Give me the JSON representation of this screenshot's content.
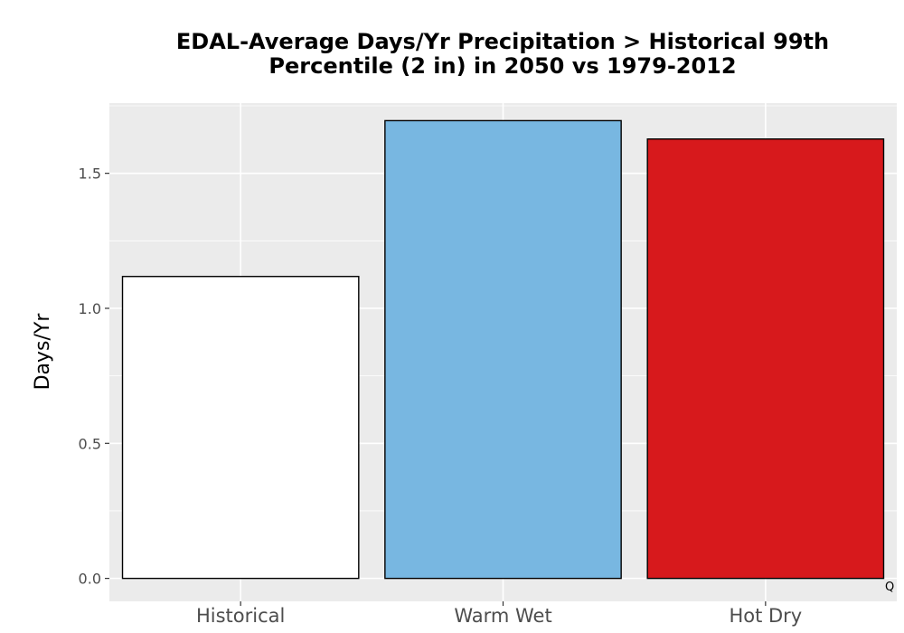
{
  "chart_data": {
    "type": "bar",
    "title": "EDAL-Average Days/Yr Precipitation > Historical 99th Percentile (2 in) in 2050 vs 1979-2012",
    "title_lines": [
      "EDAL-Average Days/Yr Precipitation > Historical 99th",
      "Percentile (2 in) in 2050 vs 1979-2012"
    ],
    "xlabel": "",
    "ylabel": "Days/Yr",
    "categories": [
      "Historical",
      "Warm Wet",
      "Hot Dry"
    ],
    "values": [
      1.118,
      1.695,
      1.627
    ],
    "colors": [
      "#ffffff",
      "#78b7e1",
      "#d7191c"
    ],
    "ylim": [
      -0.085,
      1.76
    ],
    "yticks": [
      0.0,
      0.5,
      1.0,
      1.5
    ],
    "ytick_labels": [
      "0.0",
      "0.5",
      "1.0",
      "1.5"
    ],
    "grid": true,
    "panel_background": "#ebebeb",
    "grid_color": "#ffffff",
    "bar_outline": "#000000",
    "corner_mark": "Q"
  }
}
